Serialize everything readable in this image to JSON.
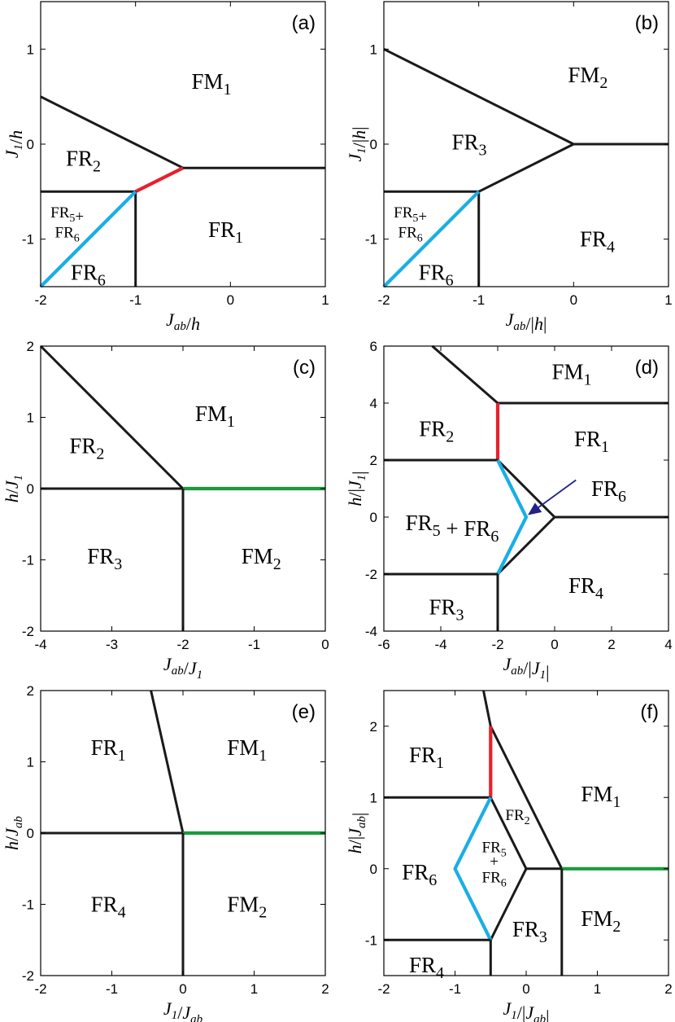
{
  "colors": {
    "black": "#1a1a1a",
    "red": "#e8202a",
    "blue": "#19aee8",
    "green": "#1b9a3e",
    "arrow": "#222288"
  },
  "panels": [
    {
      "label": "(a)",
      "xlabel": "J_ab/h",
      "ylabel": "J_1/h",
      "xlim": [
        -2,
        1
      ],
      "ylim": [
        -1.5,
        1.5
      ],
      "xticks": [
        -2,
        -1,
        0,
        1
      ],
      "yticks": [
        -1,
        0,
        1
      ],
      "lines": [
        {
          "c": "black",
          "p": [
            [
              -2,
              0.5
            ],
            [
              -0.5,
              -0.25
            ]
          ]
        },
        {
          "c": "black",
          "p": [
            [
              -0.5,
              -0.25
            ],
            [
              1,
              -0.25
            ]
          ]
        },
        {
          "c": "red",
          "p": [
            [
              -1,
              -0.5
            ],
            [
              -0.5,
              -0.25
            ]
          ]
        },
        {
          "c": "black",
          "p": [
            [
              -2,
              -0.5
            ],
            [
              -1,
              -0.5
            ]
          ]
        },
        {
          "c": "black",
          "p": [
            [
              -1,
              -0.5
            ],
            [
              -1,
              -1.5
            ]
          ]
        },
        {
          "c": "blue",
          "p": [
            [
              -2,
              -1.5
            ],
            [
              -1,
              -0.5
            ]
          ]
        }
      ],
      "regions": [
        {
          "t": "FM",
          "s": "1",
          "x": -0.2,
          "y": 0.66
        },
        {
          "t": "FR",
          "s": "2",
          "x": -1.55,
          "y": -0.15
        },
        {
          "t": "FR",
          "s": "1",
          "x": -0.05,
          "y": -0.9
        },
        {
          "t": "FR",
          "s": "6",
          "x": -1.5,
          "y": -1.35
        },
        {
          "t": "FR",
          "s": "5",
          "x": -1.72,
          "y": -0.72,
          "small": true,
          "suf": "+"
        },
        {
          "t": "FR",
          "s": "6",
          "x": -1.72,
          "y": -0.93,
          "small": true
        }
      ]
    },
    {
      "label": "(b)",
      "xlabel": "J_ab/|h|",
      "ylabel": "J_1/|h|",
      "xlim": [
        -2,
        1
      ],
      "ylim": [
        -1.5,
        1.5
      ],
      "xticks": [
        -2,
        -1,
        0,
        1
      ],
      "yticks": [
        -1,
        0,
        1
      ],
      "lines": [
        {
          "c": "black",
          "p": [
            [
              -2,
              1
            ],
            [
              0,
              0
            ]
          ]
        },
        {
          "c": "black",
          "p": [
            [
              0,
              0
            ],
            [
              1,
              0
            ]
          ]
        },
        {
          "c": "black",
          "p": [
            [
              -1,
              -0.5
            ],
            [
              0,
              0
            ]
          ]
        },
        {
          "c": "black",
          "p": [
            [
              -2,
              -0.5
            ],
            [
              -1,
              -0.5
            ]
          ]
        },
        {
          "c": "black",
          "p": [
            [
              -1,
              -0.5
            ],
            [
              -1,
              -1.5
            ]
          ]
        },
        {
          "c": "blue",
          "p": [
            [
              -2,
              -1.5
            ],
            [
              -1,
              -0.5
            ]
          ]
        }
      ],
      "regions": [
        {
          "t": "FM",
          "s": "2",
          "x": 0.15,
          "y": 0.73
        },
        {
          "t": "FR",
          "s": "3",
          "x": -1.1,
          "y": 0.02
        },
        {
          "t": "FR",
          "s": "4",
          "x": 0.25,
          "y": -1.0
        },
        {
          "t": "FR",
          "s": "6",
          "x": -1.45,
          "y": -1.35
        },
        {
          "t": "FR",
          "s": "5",
          "x": -1.72,
          "y": -0.72,
          "small": true,
          "suf": "+"
        },
        {
          "t": "FR",
          "s": "6",
          "x": -1.72,
          "y": -0.93,
          "small": true
        }
      ]
    },
    {
      "label": "(c)",
      "xlabel": "J_ab/J_1",
      "ylabel": "h/J_1",
      "xlim": [
        -4,
        0
      ],
      "ylim": [
        -2,
        2
      ],
      "xticks": [
        -4,
        -3,
        -2,
        -1,
        0
      ],
      "yticks": [
        -2,
        -1,
        0,
        1,
        2
      ],
      "lines": [
        {
          "c": "black",
          "p": [
            [
              -4,
              2
            ],
            [
              -2,
              0
            ]
          ]
        },
        {
          "c": "black",
          "p": [
            [
              -4,
              0
            ],
            [
              -2,
              0
            ]
          ]
        },
        {
          "c": "green",
          "p": [
            [
              -2,
              0
            ],
            [
              0,
              0
            ]
          ]
        },
        {
          "c": "black",
          "p": [
            [
              -2,
              0
            ],
            [
              -2,
              -2
            ]
          ]
        }
      ],
      "regions": [
        {
          "t": "FM",
          "s": "1",
          "x": -1.55,
          "y": 1.05
        },
        {
          "t": "FR",
          "s": "2",
          "x": -3.35,
          "y": 0.6
        },
        {
          "t": "FR",
          "s": "3",
          "x": -3.1,
          "y": -0.95
        },
        {
          "t": "FM",
          "s": "2",
          "x": -0.9,
          "y": -0.95
        }
      ]
    },
    {
      "label": "(d)",
      "xlabel": "J_ab/|J_1|",
      "ylabel": "h/|J_1|",
      "xlim": [
        -6,
        4
      ],
      "ylim": [
        -4,
        6
      ],
      "xticks": [
        -6,
        -4,
        -2,
        0,
        2,
        4
      ],
      "yticks": [
        -4,
        -2,
        0,
        2,
        4,
        6
      ],
      "lines": [
        {
          "c": "black",
          "p": [
            [
              -4.3,
              6
            ],
            [
              -2,
              4
            ]
          ]
        },
        {
          "c": "black",
          "p": [
            [
              -2,
              4
            ],
            [
              4,
              4
            ]
          ]
        },
        {
          "c": "red",
          "p": [
            [
              -2,
              4
            ],
            [
              -2,
              2
            ]
          ]
        },
        {
          "c": "black",
          "p": [
            [
              -6,
              2
            ],
            [
              -2,
              2
            ]
          ]
        },
        {
          "c": "black",
          "p": [
            [
              -2,
              2
            ],
            [
              0,
              0
            ]
          ]
        },
        {
          "c": "black",
          "p": [
            [
              0,
              0
            ],
            [
              4,
              0
            ]
          ]
        },
        {
          "c": "black",
          "p": [
            [
              -2,
              -2
            ],
            [
              0,
              0
            ]
          ]
        },
        {
          "c": "blue",
          "p": [
            [
              -2,
              2
            ],
            [
              -1,
              0
            ],
            [
              -2,
              -2
            ]
          ]
        },
        {
          "c": "black",
          "p": [
            [
              -6,
              -2
            ],
            [
              -2,
              -2
            ]
          ]
        },
        {
          "c": "black",
          "p": [
            [
              -2,
              -2
            ],
            [
              -2,
              -4
            ]
          ]
        }
      ],
      "regions": [
        {
          "t": "FM",
          "s": "1",
          "x": 0.6,
          "y": 5.1
        },
        {
          "t": "FR",
          "s": "2",
          "x": -4.15,
          "y": 3.1
        },
        {
          "t": "FR",
          "s": "1",
          "x": 1.3,
          "y": 2.75
        },
        {
          "t": "FR",
          "s": "6",
          "x": 1.9,
          "y": 1.0
        },
        {
          "t": "FR",
          "s": "5",
          "x": -3.6,
          "y": -0.2,
          "suf": " + FR",
          "s2": "6"
        },
        {
          "t": "FR",
          "s": "4",
          "x": 1.1,
          "y": -2.4
        },
        {
          "t": "FR",
          "s": "3",
          "x": -3.8,
          "y": -3.15
        }
      ],
      "arrow": [
        [
          0.75,
          1.3
        ],
        [
          -0.9,
          0.1
        ]
      ]
    },
    {
      "label": "(e)",
      "xlabel": "J_1/J_ab",
      "ylabel": "h/J_ab",
      "xlim": [
        -2,
        2
      ],
      "ylim": [
        -2,
        2
      ],
      "xticks": [
        -2,
        -1,
        0,
        1,
        2
      ],
      "yticks": [
        -2,
        -1,
        0,
        1,
        2
      ],
      "lines": [
        {
          "c": "black",
          "p": [
            [
              -0.45,
              2
            ],
            [
              0,
              0
            ]
          ]
        },
        {
          "c": "black",
          "p": [
            [
              -2,
              0
            ],
            [
              0,
              0
            ]
          ]
        },
        {
          "c": "green",
          "p": [
            [
              0,
              0
            ],
            [
              2,
              0
            ]
          ]
        },
        {
          "c": "black",
          "p": [
            [
              0,
              0
            ],
            [
              0,
              -2
            ]
          ]
        }
      ],
      "regions": [
        {
          "t": "FR",
          "s": "1",
          "x": -1.05,
          "y": 1.2
        },
        {
          "t": "FM",
          "s": "1",
          "x": 0.9,
          "y": 1.2
        },
        {
          "t": "FR",
          "s": "4",
          "x": -1.05,
          "y": -1.0
        },
        {
          "t": "FM",
          "s": "2",
          "x": 0.9,
          "y": -1.0
        }
      ]
    },
    {
      "label": "(f)",
      "xlabel": "J_1/|J_ab|",
      "ylabel": "h/|J_ab|",
      "xlim": [
        -2,
        2
      ],
      "ylim": [
        -1.5,
        2.5
      ],
      "xticks": [
        -2,
        -1,
        0,
        1,
        2
      ],
      "yticks": [
        -1,
        0,
        1,
        2
      ],
      "lines": [
        {
          "c": "black",
          "p": [
            [
              -0.6,
              2.5
            ],
            [
              -0.5,
              2
            ],
            [
              0.5,
              0
            ]
          ]
        },
        {
          "c": "red",
          "p": [
            [
              -0.5,
              2
            ],
            [
              -0.5,
              1
            ]
          ]
        },
        {
          "c": "black",
          "p": [
            [
              -2,
              1
            ],
            [
              -0.5,
              1
            ]
          ]
        },
        {
          "c": "black",
          "p": [
            [
              -0.5,
              1
            ],
            [
              0,
              0
            ]
          ]
        },
        {
          "c": "black",
          "p": [
            [
              0,
              0
            ],
            [
              0.5,
              0
            ]
          ]
        },
        {
          "c": "black",
          "p": [
            [
              -0.5,
              -1
            ],
            [
              0,
              0
            ]
          ]
        },
        {
          "c": "green",
          "p": [
            [
              0.5,
              0
            ],
            [
              2,
              0
            ]
          ]
        },
        {
          "c": "blue",
          "p": [
            [
              -0.5,
              1
            ],
            [
              -1,
              0
            ],
            [
              -0.5,
              -1
            ]
          ]
        },
        {
          "c": "black",
          "p": [
            [
              -2,
              -1
            ],
            [
              -0.5,
              -1
            ]
          ]
        },
        {
          "c": "black",
          "p": [
            [
              -0.5,
              -1
            ],
            [
              -0.5,
              -1.5
            ]
          ]
        },
        {
          "c": "black",
          "p": [
            [
              0.5,
              0
            ],
            [
              0.5,
              -1.5
            ]
          ]
        }
      ],
      "regions": [
        {
          "t": "FR",
          "s": "1",
          "x": -1.4,
          "y": 1.6
        },
        {
          "t": "FM",
          "s": "1",
          "x": 1.05,
          "y": 1.05
        },
        {
          "t": "FR",
          "s": "2",
          "x": -0.12,
          "y": 0.75,
          "small": true
        },
        {
          "t": "FR",
          "s": "5",
          "x": -0.45,
          "y": 0.3,
          "small": true
        },
        {
          "t": "+",
          "s": "",
          "x": -0.45,
          "y": 0.1,
          "small": true
        },
        {
          "t": "FR",
          "s": "6",
          "x": -0.45,
          "y": -0.12,
          "small": true
        },
        {
          "t": "FR",
          "s": "6",
          "x": -1.5,
          "y": -0.05
        },
        {
          "t": "FR",
          "s": "3",
          "x": 0.05,
          "y": -0.85
        },
        {
          "t": "FM",
          "s": "2",
          "x": 1.05,
          "y": -0.7
        },
        {
          "t": "FR",
          "s": "4",
          "x": -1.4,
          "y": -1.35
        }
      ]
    }
  ]
}
